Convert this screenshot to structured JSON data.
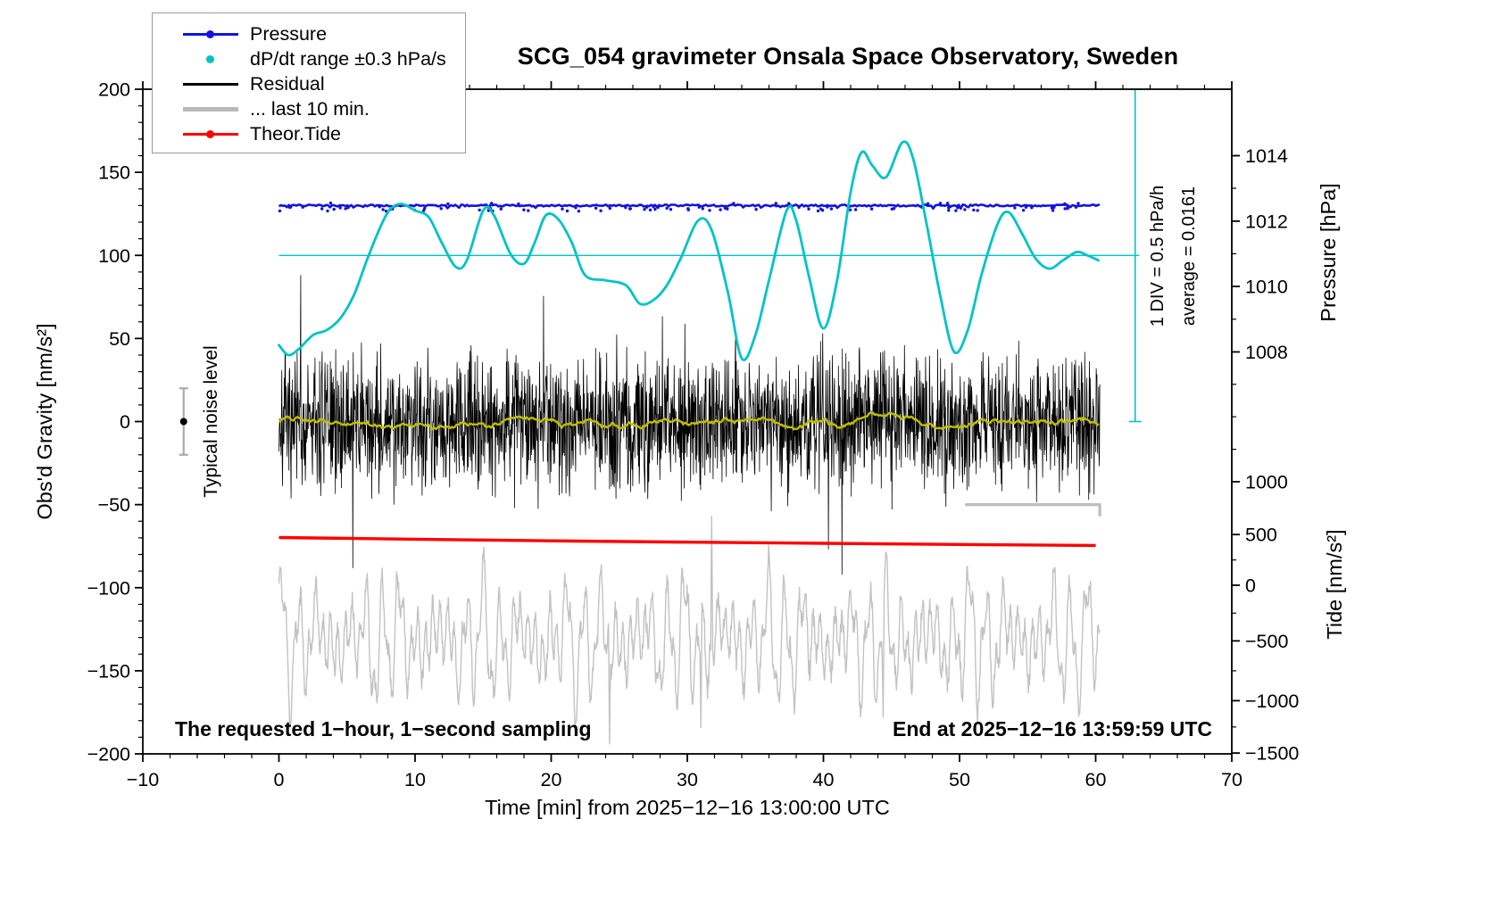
{
  "title": "SCG_054 gravimeter Onsala Space Observatory, Sweden",
  "legend": {
    "items": [
      {
        "label": "Pressure",
        "color": "#1212dd",
        "style": "line-dot"
      },
      {
        "label": "dP/dt range ±0.3 hPa/s",
        "color": "#00c3c3",
        "style": "dot"
      },
      {
        "label": "Residual",
        "color": "#000000",
        "style": "line"
      },
      {
        "label": "... last 10 min.",
        "color": "#b8b8b8",
        "style": "thickline"
      },
      {
        "label": "Theor.Tide",
        "color": "#ff0000",
        "style": "line-dot"
      }
    ]
  },
  "annotations": {
    "noise_level": "Typical noise level",
    "div_scale": "1 DIV = 0.5 hPa/h",
    "average": "average = 0.0161",
    "bottom_left": "The requested 1−hour, 1−second sampling",
    "bottom_right": "End at 2025−12−16 13:59:59 UTC"
  },
  "chart_data": {
    "type": "line",
    "title": "SCG_054 gravimeter Onsala Space Observatory, Sweden",
    "xlabel": "Time [min] from 2025−12−16 13:00:00 UTC",
    "ylabel_left": "Obs'd Gravity [nm/s²]",
    "ylabel_pressure": "Pressure [hPa]",
    "ylabel_tide": "Tide [nm/s²]",
    "xlim": [
      -10,
      70
    ],
    "ylim_left": [
      -200,
      200
    ],
    "grid": false,
    "legend_position": "top-left",
    "axes": {
      "x": {
        "min": -10,
        "max": 70,
        "minor_step": 2,
        "major": [
          {
            "v": -10,
            "label": "−10"
          },
          {
            "v": 0,
            "label": "0"
          },
          {
            "v": 10,
            "label": "10"
          },
          {
            "v": 20,
            "label": "20"
          },
          {
            "v": 30,
            "label": "30"
          },
          {
            "v": 40,
            "label": "40"
          },
          {
            "v": 50,
            "label": "50"
          },
          {
            "v": 60,
            "label": "60"
          },
          {
            "v": 70,
            "label": "70"
          }
        ]
      },
      "y_left": {
        "min": -200,
        "max": 200,
        "minor_step": 10,
        "major": [
          {
            "v": -200,
            "label": "−200"
          },
          {
            "v": -150,
            "label": "−150"
          },
          {
            "v": -100,
            "label": "−100"
          },
          {
            "v": -50,
            "label": "−50"
          },
          {
            "v": 0,
            "label": "0"
          },
          {
            "v": 50,
            "label": "50"
          },
          {
            "v": 100,
            "label": "100"
          },
          {
            "v": 150,
            "label": "150"
          },
          {
            "v": 200,
            "label": "200"
          }
        ]
      },
      "y_pressure": {
        "major": [
          {
            "label": "1014",
            "u": 160
          },
          {
            "label": "1012",
            "u": 120.6
          },
          {
            "label": "1010",
            "u": 81.3
          },
          {
            "label": "1008",
            "u": 41.9
          },
          {
            "label": "1000",
            "u": -36.2
          }
        ],
        "minor_u": [
          140.4,
          101.0,
          61.6,
          22.4,
          2.9,
          -16.7
        ]
      },
      "y_tide": {
        "major": [
          {
            "label": "500",
            "u": -68
          },
          {
            "label": "0",
            "u": -98.5
          },
          {
            "label": "−500",
            "u": -132
          },
          {
            "label": "−1000",
            "u": -168
          },
          {
            "label": "−1500",
            "u": -199.5
          }
        ],
        "minor_u": [
          -83.3,
          -115.3,
          -150.0,
          -183.8
        ]
      }
    },
    "series": [
      {
        "name": "last-10-min-tide-residual",
        "color": "#c2c2c2",
        "width": 1.4,
        "style": "gray-osc",
        "x0": 0,
        "x1": 60.3,
        "n": 1600,
        "center": -131,
        "seed": 11,
        "amp1": 33,
        "freq1": 5.1,
        "amp2": 15,
        "freq2": 11.7,
        "amp3": 8,
        "freq3": 2.1,
        "jitter": 12,
        "spikes": [
          {
            "x": 24.3,
            "y": -194
          },
          {
            "x": 31.0,
            "y": -184
          },
          {
            "x": 31.8,
            "y": -57
          },
          {
            "x": 44.4,
            "y": -178
          }
        ]
      },
      {
        "name": "residual",
        "color": "#000000",
        "width": 0.8,
        "style": "noise",
        "x0": 0,
        "x1": 60.3,
        "n": 2300,
        "std": 20,
        "spike_prob": 0.012,
        "spike_scale": 2.1,
        "clip": [
          -92,
          88
        ],
        "seed": 7
      },
      {
        "name": "residual-running-mean",
        "color": "#bfbf00",
        "width": 2.4,
        "style": "smooth-of-noise",
        "window": 81,
        "source": "residual"
      },
      {
        "name": "pressure",
        "color": "#1212dd",
        "width": 2.6,
        "style": "flatline-scatter",
        "x0": 0,
        "x1": 60.3,
        "n": 420,
        "base": 130,
        "base_hpa": 1012.5,
        "jitter": 1.1,
        "scatter_n": 85,
        "scatter_lo": 126.6,
        "scatter_hi": 129.3,
        "scatter_hi_n": 12,
        "scatter_top": 131.2,
        "dot_r": 1.7,
        "seed": 23
      },
      {
        "name": "theor-tide",
        "color": "#ff0000",
        "width": 3.4,
        "style": "keypoints",
        "points": [
          [
            0,
            -69.8
          ],
          [
            10,
            -70.8
          ],
          [
            20,
            -71.8
          ],
          [
            30,
            -72.6
          ],
          [
            40,
            -73.3
          ],
          [
            50,
            -74.0
          ],
          [
            60,
            -74.6
          ]
        ]
      },
      {
        "name": "dpdt",
        "color": "#00c3c3",
        "width": 2.8,
        "style": "keypoints-smooth",
        "points": [
          [
            0,
            46
          ],
          [
            0.7,
            40
          ],
          [
            1.5,
            44
          ],
          [
            2.5,
            52
          ],
          [
            3.5,
            55
          ],
          [
            4.5,
            62
          ],
          [
            5.5,
            76
          ],
          [
            6.5,
            98
          ],
          [
            7.5,
            118
          ],
          [
            8.2,
            128
          ],
          [
            9,
            131
          ],
          [
            10,
            127
          ],
          [
            11,
            123
          ],
          [
            12,
            107
          ],
          [
            13,
            93
          ],
          [
            13.8,
            97
          ],
          [
            15,
            127
          ],
          [
            15.8,
            124
          ],
          [
            17,
            101
          ],
          [
            18,
            95
          ],
          [
            18.8,
            108
          ],
          [
            19.6,
            124
          ],
          [
            20.5,
            122
          ],
          [
            21.5,
            108
          ],
          [
            22.5,
            88
          ],
          [
            24,
            85
          ],
          [
            25.5,
            82
          ],
          [
            26.5,
            71
          ],
          [
            27.5,
            73
          ],
          [
            28.5,
            82
          ],
          [
            29.5,
            98
          ],
          [
            30.8,
            121
          ],
          [
            31.8,
            115
          ],
          [
            33,
            77
          ],
          [
            34,
            38
          ],
          [
            35,
            52
          ],
          [
            36,
            85
          ],
          [
            37.3,
            127
          ],
          [
            38,
            121
          ],
          [
            39,
            85
          ],
          [
            40,
            56
          ],
          [
            41,
            85
          ],
          [
            42,
            138
          ],
          [
            42.8,
            162
          ],
          [
            43.6,
            154
          ],
          [
            44.6,
            147
          ],
          [
            45.8,
            168
          ],
          [
            46.6,
            158
          ],
          [
            47.6,
            118
          ],
          [
            48.6,
            75
          ],
          [
            49.6,
            42
          ],
          [
            50.6,
            55
          ],
          [
            51.6,
            88
          ],
          [
            52.8,
            119
          ],
          [
            53.6,
            126
          ],
          [
            54.6,
            113
          ],
          [
            55.6,
            98
          ],
          [
            56.6,
            92
          ],
          [
            57.6,
            97
          ],
          [
            58.6,
            102
          ],
          [
            59.4,
            100
          ],
          [
            60.2,
            97
          ]
        ]
      }
    ],
    "reference_lines": [
      {
        "name": "dpdt-zero-line",
        "color": "#00c3c3",
        "width": 1.4,
        "points": [
          [
            0,
            100
          ],
          [
            63.2,
            100
          ]
        ]
      },
      {
        "name": "last10min-window-line",
        "color": "#bdbdbd",
        "width": 3.2,
        "points": [
          [
            50.4,
            -50
          ],
          [
            60.3,
            -50
          ],
          [
            60.3,
            -57
          ]
        ]
      }
    ],
    "scale_bar": {
      "x": 62.9,
      "u0": 0,
      "u1": 200,
      "color": "#00c3c3",
      "width": 1.6,
      "cap": 7,
      "label": "1 DIV = 0.5 hPa/h",
      "average_label": "average = 0.0161"
    },
    "noise_marker": {
      "x": -7,
      "y": 0,
      "err": 20,
      "dot_color": "#000000",
      "bar_color": "#aaaaaa",
      "label": "Typical noise level"
    }
  }
}
